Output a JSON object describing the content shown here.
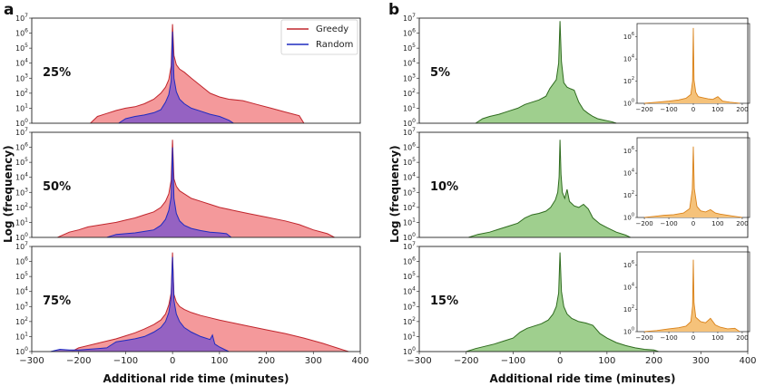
{
  "figure": {
    "panel_a_label": "a",
    "panel_b_label": "b",
    "ylabel": "Log (frequency)",
    "xlabel": "Additional ride time (minutes)",
    "legend": [
      "Greedy",
      "Random"
    ]
  },
  "colors": {
    "greedy_line": "#c0262d",
    "greedy_fill": "#f4999b",
    "random_line": "#1f2bbf",
    "random_fill": "#8b5cc7",
    "green_line": "#2e6b1e",
    "green_fill": "#9fcf8e",
    "orange_line": "#d9821a",
    "orange_fill": "#f5c27a"
  },
  "chart_data": [
    {
      "panel": "a",
      "type": "area",
      "xlim": [
        -300,
        400
      ],
      "xticks": [
        -300,
        -200,
        -100,
        0,
        100,
        200,
        300,
        400
      ],
      "yscale": "log",
      "ylim_exp": [
        0,
        7
      ],
      "yticks": [
        "10^0",
        "10^1",
        "10^2",
        "10^3",
        "10^4",
        "10^5",
        "10^6",
        "10^7"
      ],
      "rows": [
        {
          "label": "25%",
          "series": [
            {
              "name": "Greedy",
              "x": [
                -175,
                -160,
                -140,
                -120,
                -100,
                -80,
                -60,
                -40,
                -25,
                -15,
                -8,
                -3,
                0,
                3,
                8,
                15,
                25,
                40,
                60,
                80,
                100,
                120,
                150,
                180,
                210,
                240,
                270,
                280
              ],
              "y": [
                0,
                0.45,
                0.65,
                0.85,
                1.0,
                1.1,
                1.3,
                1.6,
                2.0,
                2.4,
                2.9,
                3.8,
                6.6,
                4.5,
                3.9,
                3.6,
                3.4,
                3.0,
                2.5,
                2.0,
                1.75,
                1.6,
                1.5,
                1.25,
                1.0,
                0.75,
                0.5,
                0
              ]
            },
            {
              "name": "Random",
              "x": [
                -115,
                -100,
                -80,
                -60,
                -40,
                -25,
                -15,
                -8,
                -3,
                0,
                3,
                8,
                15,
                25,
                40,
                60,
                80,
                100,
                120,
                130
              ],
              "y": [
                0,
                0.3,
                0.45,
                0.55,
                0.7,
                0.9,
                1.4,
                1.9,
                2.8,
                6.1,
                3.0,
                2.1,
                1.6,
                1.3,
                1.0,
                0.8,
                0.6,
                0.45,
                0.2,
                0
              ]
            }
          ]
        },
        {
          "label": "50%",
          "series": [
            {
              "name": "Greedy",
              "x": [
                -245,
                -220,
                -200,
                -180,
                -150,
                -120,
                -100,
                -80,
                -60,
                -40,
                -25,
                -15,
                -8,
                -3,
                0,
                3,
                8,
                15,
                25,
                40,
                60,
                80,
                100,
                130,
                160,
                200,
                240,
                270,
                300,
                330,
                345
              ],
              "y": [
                0,
                0.35,
                0.5,
                0.7,
                0.85,
                1.0,
                1.15,
                1.3,
                1.5,
                1.7,
                2.0,
                2.4,
                2.9,
                3.8,
                6.5,
                3.9,
                3.4,
                3.1,
                2.9,
                2.6,
                2.4,
                2.2,
                2.0,
                1.8,
                1.6,
                1.35,
                1.1,
                0.85,
                0.5,
                0.25,
                0
              ]
            },
            {
              "name": "Random",
              "x": [
                -140,
                -120,
                -100,
                -80,
                -60,
                -40,
                -25,
                -15,
                -8,
                -3,
                0,
                3,
                8,
                15,
                25,
                40,
                60,
                80,
                100,
                115,
                125
              ],
              "y": [
                0,
                0.2,
                0.25,
                0.3,
                0.4,
                0.5,
                0.8,
                1.2,
                1.8,
                2.7,
                6.0,
                2.6,
                1.6,
                1.1,
                0.8,
                0.6,
                0.45,
                0.35,
                0.3,
                0.25,
                0
              ]
            }
          ]
        },
        {
          "label": "75%",
          "series": [
            {
              "name": "Greedy",
              "x": [
                -215,
                -200,
                -180,
                -160,
                -140,
                -120,
                -100,
                -80,
                -60,
                -40,
                -25,
                -15,
                -8,
                -3,
                0,
                3,
                8,
                15,
                25,
                40,
                60,
                80,
                100,
                130,
                160,
                200,
                240,
                280,
                320,
                350,
                375
              ],
              "y": [
                0,
                0.25,
                0.4,
                0.55,
                0.7,
                0.85,
                1.05,
                1.25,
                1.5,
                1.8,
                2.1,
                2.5,
                3.1,
                3.9,
                6.6,
                3.8,
                3.3,
                3.0,
                2.8,
                2.6,
                2.4,
                2.25,
                2.1,
                1.9,
                1.7,
                1.45,
                1.2,
                0.9,
                0.55,
                0.25,
                0
              ]
            },
            {
              "name": "Random",
              "x": [
                -260,
                -240,
                -220,
                -200,
                -180,
                -160,
                -140,
                -130,
                -120,
                -100,
                -80,
                -60,
                -40,
                -25,
                -15,
                -8,
                -3,
                0,
                3,
                8,
                15,
                25,
                40,
                60,
                80,
                85,
                90,
                100,
                110,
                120
              ],
              "y": [
                0,
                0.15,
                0.1,
                0.1,
                0.15,
                0.2,
                0.25,
                0.45,
                0.65,
                0.75,
                0.85,
                1.0,
                1.3,
                1.6,
                2.0,
                2.6,
                3.6,
                6.3,
                3.4,
                2.5,
                2.0,
                1.6,
                1.3,
                1.0,
                0.8,
                1.1,
                0.5,
                0.3,
                0.15,
                0
              ]
            }
          ]
        }
      ]
    },
    {
      "panel": "b",
      "type": "area",
      "xlim": [
        -300,
        400
      ],
      "xticks": [
        -300,
        -200,
        -100,
        0,
        100,
        200,
        300,
        400
      ],
      "yscale": "log",
      "ylim_exp": [
        0,
        7
      ],
      "yticks": [
        "10^0",
        "10^1",
        "10^2",
        "10^3",
        "10^4",
        "10^5",
        "10^6",
        "10^7"
      ],
      "inset_xticks": [
        -200,
        -100,
        0,
        100,
        200
      ],
      "inset_yticks": [
        "10^0",
        "10^2",
        "10^4",
        "10^6"
      ],
      "rows": [
        {
          "label": "5%",
          "main": {
            "x": [
              -180,
              -165,
              -150,
              -130,
              -110,
              -90,
              -75,
              -60,
              -45,
              -30,
              -22,
              -15,
              -8,
              -3,
              0,
              3,
              8,
              15,
              22,
              30,
              40,
              50,
              60,
              70,
              80,
              95,
              110,
              120
            ],
            "y": [
              0,
              0.3,
              0.45,
              0.6,
              0.8,
              1.0,
              1.25,
              1.4,
              1.55,
              1.8,
              2.3,
              2.6,
              2.9,
              4.0,
              6.8,
              4.1,
              2.7,
              2.4,
              2.3,
              2.2,
              1.4,
              0.9,
              0.65,
              0.45,
              0.3,
              0.2,
              0.1,
              0
            ]
          },
          "inset": {
            "x": [
              -200,
              -150,
              -100,
              -60,
              -30,
              -10,
              -3,
              0,
              3,
              10,
              20,
              40,
              60,
              80,
              100,
              120,
              150,
              190
            ],
            "y": [
              0,
              0.1,
              0.2,
              0.3,
              0.45,
              0.8,
              2.0,
              6.8,
              2.1,
              1.0,
              0.6,
              0.5,
              0.4,
              0.35,
              0.6,
              0.2,
              0.1,
              0
            ]
          }
        },
        {
          "label": "10%",
          "main": {
            "x": [
              -195,
              -175,
              -150,
              -130,
              -110,
              -90,
              -75,
              -60,
              -45,
              -30,
              -20,
              -10,
              -5,
              -2,
              0,
              2,
              5,
              10,
              15,
              20,
              30,
              40,
              50,
              60,
              70,
              85,
              100,
              120,
              140,
              150
            ],
            "y": [
              0,
              0.2,
              0.35,
              0.55,
              0.75,
              0.95,
              1.3,
              1.5,
              1.6,
              1.75,
              2.0,
              2.5,
              3.0,
              4.0,
              6.5,
              4.2,
              3.0,
              2.6,
              3.2,
              2.4,
              2.1,
              2.0,
              2.2,
              1.9,
              1.3,
              0.9,
              0.65,
              0.35,
              0.15,
              0
            ]
          },
          "inset": {
            "x": [
              -200,
              -160,
              -120,
              -80,
              -40,
              -15,
              -4,
              0,
              4,
              15,
              30,
              50,
              70,
              90,
              110,
              140,
              170,
              200
            ],
            "y": [
              0,
              0.1,
              0.2,
              0.25,
              0.4,
              0.8,
              2.5,
              6.4,
              2.6,
              1.0,
              0.6,
              0.5,
              0.7,
              0.4,
              0.3,
              0.2,
              0.1,
              0
            ]
          }
        },
        {
          "label": "15%",
          "main": {
            "x": [
              -200,
              -180,
              -160,
              -140,
              -120,
              -100,
              -85,
              -70,
              -55,
              -40,
              -25,
              -15,
              -8,
              -3,
              0,
              3,
              8,
              15,
              25,
              40,
              55,
              70,
              85,
              100,
              120,
              140,
              160,
              180,
              200,
              210
            ],
            "y": [
              0,
              0.2,
              0.35,
              0.5,
              0.7,
              0.9,
              1.3,
              1.55,
              1.7,
              1.85,
              2.1,
              2.5,
              3.0,
              3.9,
              6.6,
              4.0,
              3.0,
              2.5,
              2.2,
              2.0,
              1.9,
              1.75,
              1.2,
              0.9,
              0.6,
              0.4,
              0.25,
              0.15,
              0.1,
              0
            ]
          },
          "inset": {
            "x": [
              -200,
              -150,
              -100,
              -60,
              -30,
              -10,
              -3,
              0,
              3,
              10,
              30,
              50,
              70,
              90,
              110,
              140,
              170,
              190
            ],
            "y": [
              0,
              0.1,
              0.25,
              0.35,
              0.5,
              0.9,
              2.3,
              6.5,
              2.6,
              1.3,
              0.9,
              0.8,
              1.2,
              0.6,
              0.4,
              0.25,
              0.3,
              0
            ]
          }
        }
      ]
    }
  ]
}
